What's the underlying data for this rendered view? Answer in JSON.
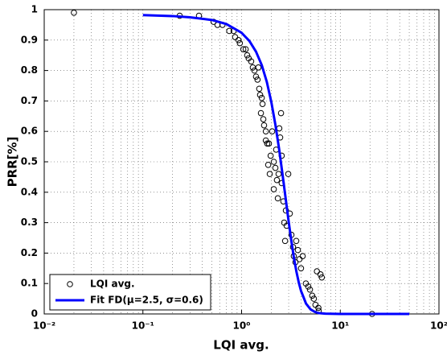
{
  "chart_data": {
    "type": "line",
    "x_label": "LQI avg.",
    "y_label": "PRR[%]",
    "xscale": "log",
    "xlim": [
      0.01,
      100
    ],
    "ylim": [
      0,
      1
    ],
    "xticks": [
      {
        "value": 0.01,
        "label": "10⁻²"
      },
      {
        "value": 0.1,
        "label": "10⁻¹"
      },
      {
        "value": 1,
        "label": "10⁰"
      },
      {
        "value": 10,
        "label": "10¹"
      },
      {
        "value": 100,
        "label": "10²"
      }
    ],
    "xminor_ticks": [
      0.02,
      0.03,
      0.04,
      0.05,
      0.06,
      0.07,
      0.08,
      0.09,
      0.2,
      0.3,
      0.4,
      0.5,
      0.6,
      0.7,
      0.8,
      0.9,
      2,
      3,
      4,
      5,
      6,
      7,
      8,
      9,
      20,
      30,
      40,
      50,
      60,
      70,
      80,
      90
    ],
    "yticks": [
      0,
      0.1,
      0.2,
      0.3,
      0.4,
      0.5,
      0.6,
      0.7,
      0.8,
      0.9,
      1
    ],
    "grid": true,
    "legend": "lower left",
    "series": [
      {
        "name": "LQI avg.",
        "type": "scatter",
        "color": "#000000",
        "x": [
          0.02,
          0.236,
          0.37,
          0.52,
          0.57,
          0.64,
          0.75,
          0.83,
          0.86,
          0.93,
          0.96,
          1.04,
          1.1,
          1.14,
          1.18,
          1.25,
          1.3,
          1.35,
          1.4,
          1.45,
          1.48,
          1.51,
          1.54,
          1.6,
          1.57,
          1.63,
          1.66,
          1.69,
          1.76,
          1.76,
          1.82,
          1.86,
          1.89,
          1.93,
          1.97,
          2.04,
          2.12,
          2.12,
          2.2,
          2.24,
          2.28,
          2.33,
          2.37,
          2.41,
          2.46,
          2.51,
          2.55,
          2.55,
          2.65,
          2.7,
          2.76,
          2.81,
          2.86,
          2.97,
          3.08,
          3.2,
          3.32,
          3.38,
          3.51,
          3.58,
          3.72,
          3.86,
          4.0,
          4.16,
          4.48,
          4.74,
          4.93,
          5.2,
          5.4,
          5.6,
          6.0,
          6.05,
          6.3,
          6.5,
          5.8,
          21
        ],
        "values": [
          0.99,
          0.98,
          0.98,
          0.96,
          0.95,
          0.95,
          0.93,
          0.93,
          0.91,
          0.9,
          0.89,
          0.87,
          0.87,
          0.85,
          0.84,
          0.83,
          0.81,
          0.8,
          0.78,
          0.77,
          0.81,
          0.74,
          0.72,
          0.71,
          0.66,
          0.69,
          0.64,
          0.62,
          0.6,
          0.57,
          0.56,
          0.49,
          0.56,
          0.46,
          0.52,
          0.6,
          0.5,
          0.41,
          0.48,
          0.54,
          0.44,
          0.38,
          0.46,
          0.61,
          0.58,
          0.66,
          0.52,
          0.43,
          0.37,
          0.3,
          0.24,
          0.34,
          0.29,
          0.46,
          0.33,
          0.26,
          0.22,
          0.19,
          0.17,
          0.24,
          0.21,
          0.18,
          0.15,
          0.19,
          0.1,
          0.09,
          0.08,
          0.06,
          0.05,
          0.03,
          0.02,
          0.01,
          0.13,
          0.12,
          0.14,
          0
        ]
      },
      {
        "name": "Fit FD(μ=2.5, σ=0.6)",
        "type": "line",
        "color": "#0000ff",
        "x": [
          0.1,
          0.2,
          0.3,
          0.5,
          0.7,
          1,
          1.2,
          1.4,
          1.6,
          1.8,
          2,
          2.2,
          2.4,
          2.6,
          2.8,
          3,
          3.2,
          3.4,
          3.6,
          3.8,
          4,
          4.5,
          5,
          5.5,
          6,
          7,
          10,
          20,
          50
        ],
        "values": [
          0.982,
          0.979,
          0.975,
          0.966,
          0.953,
          0.924,
          0.897,
          0.862,
          0.818,
          0.763,
          0.697,
          0.622,
          0.542,
          0.458,
          0.378,
          0.303,
          0.238,
          0.182,
          0.138,
          0.103,
          0.076,
          0.034,
          0.015,
          0.007,
          0.003,
          0.001,
          0,
          0,
          0
        ]
      }
    ]
  }
}
